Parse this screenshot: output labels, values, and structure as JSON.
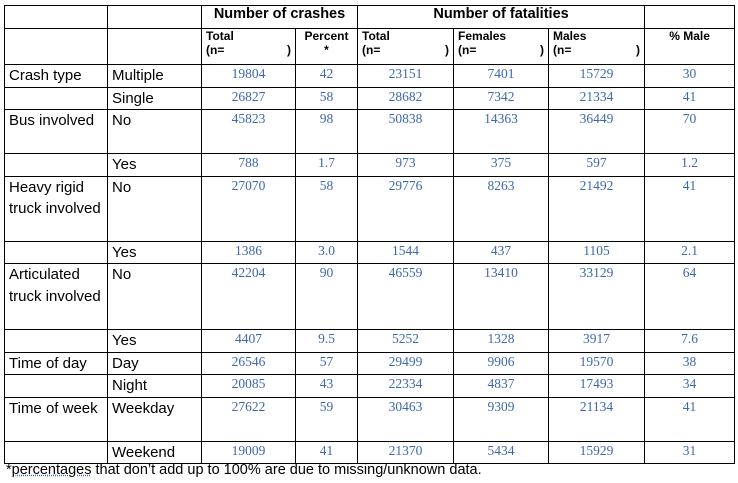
{
  "header": {
    "crashes_group": "Number of crashes",
    "fatalities_group": "Number of fatalities",
    "total_label": "Total",
    "n_prefix": "(n=",
    "n_suffix": ")",
    "percent_label": "Percent",
    "percent_star": "*",
    "females_label": "Females",
    "males_label": "Males",
    "pct_male_label": "% Male"
  },
  "rows": [
    {
      "group": "Crash type",
      "sub": "Multiple",
      "values": [
        "19804",
        "42",
        "23151",
        "7401",
        "15729",
        "30"
      ]
    },
    {
      "group": "",
      "sub": "Single",
      "values": [
        "26827",
        "58",
        "28682",
        "7342",
        "21334",
        "41"
      ]
    },
    {
      "group": "Bus involved",
      "sub": "No",
      "values": [
        "45823",
        "98",
        "50838",
        "14363",
        "36449",
        "70"
      ]
    },
    {
      "group": "",
      "sub": "Yes",
      "values": [
        "788",
        "1.7",
        "973",
        "375",
        "597",
        "1.2"
      ]
    },
    {
      "group": "Heavy rigid truck involved",
      "sub": "No",
      "values": [
        "27070",
        "58",
        "29776",
        "8263",
        "21492",
        "41"
      ]
    },
    {
      "group": "",
      "sub": "Yes",
      "values": [
        "1386",
        "3.0",
        "1544",
        "437",
        "1105",
        "2.1"
      ]
    },
    {
      "group": "Articulated truck involved",
      "sub": "No",
      "values": [
        "42204",
        "90",
        "46559",
        "13410",
        "33129",
        "64"
      ]
    },
    {
      "group": "",
      "sub": "Yes",
      "values": [
        "4407",
        "9.5",
        "5252",
        "1328",
        "3917",
        "7.6"
      ]
    },
    {
      "group": "Time of day",
      "sub": "Day",
      "values": [
        "26546",
        "57",
        "29499",
        "9906",
        "19570",
        "38"
      ]
    },
    {
      "group": "",
      "sub": "Night",
      "values": [
        "20085",
        "43",
        "22334",
        "4837",
        "17493",
        "34"
      ]
    },
    {
      "group": "Time of week",
      "sub": "Weekday",
      "values": [
        "27622",
        "59",
        "30463",
        "9309",
        "21134",
        "41"
      ]
    },
    {
      "group": "",
      "sub": "Weekend",
      "values": [
        "19009",
        "41",
        "21370",
        "5434",
        "15929",
        "31"
      ]
    }
  ],
  "footnote": {
    "star": "*",
    "underlined": "percentages",
    "rest": " that don’t add up to 100% are due to missing/unknown data."
  }
}
